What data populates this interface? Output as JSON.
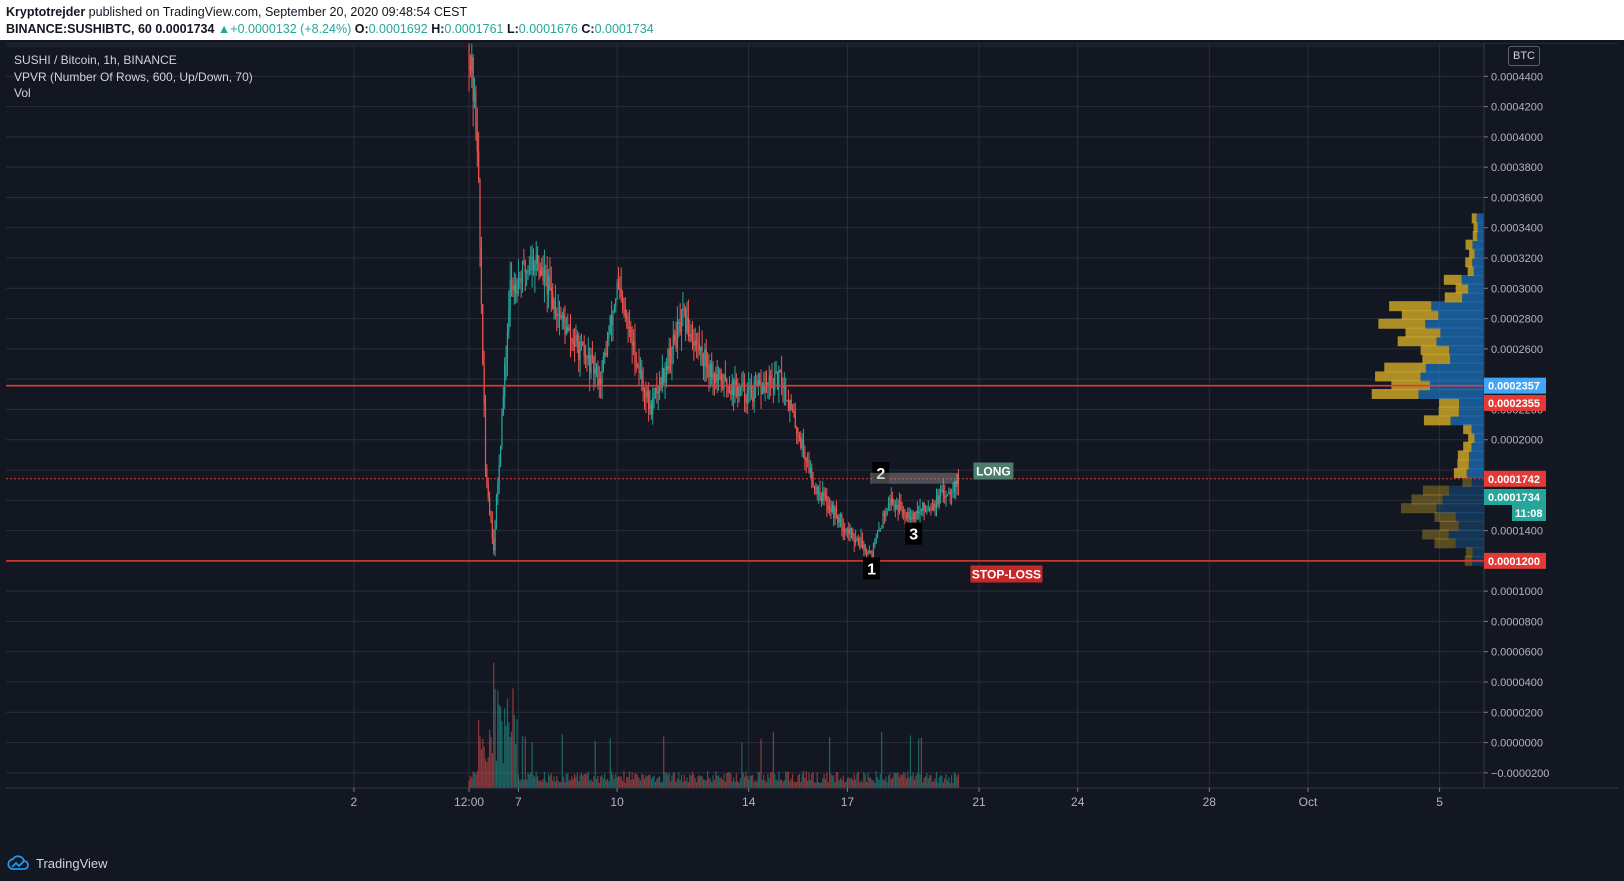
{
  "header": {
    "author": "Kryptotrejder",
    "published_text": "published on TradingView.com, September 20, 2020 09:48:54 CEST",
    "symbol": "BINANCE:SUSHIBTC, 60",
    "last": "0.0001734",
    "change": "+0.0000132 (+8.24%)",
    "open_label": "O:",
    "open": "0.0001692",
    "high_label": "H:",
    "high": "0.0001761",
    "low_label": "L:",
    "low": "0.0001676",
    "close_label": "C:",
    "close": "0.0001734"
  },
  "legend": {
    "line1": "SUSHI / Bitcoin, 1h, BINANCE",
    "line2": "VPVR (Number Of Rows, 600, Up/Down, 70)",
    "line3": "Vol"
  },
  "currency_badge": "BTC",
  "footer": {
    "brand": "TradingView"
  },
  "colors": {
    "background": "#131722",
    "grid": "#2a2e39",
    "up": "#26a69a",
    "down": "#ef5350",
    "level_line": "#e53935",
    "vpvr_up": "#1e6fb8",
    "vpvr_down": "#c9a227"
  },
  "chart_data": {
    "type": "candlestick",
    "title": "SUSHI / Bitcoin, 1h, BINANCE",
    "ylim": [
      -3e-05,
      0.000462
    ],
    "y_ticks": [
      "0.0004400",
      "0.0004200",
      "0.0004000",
      "0.0003800",
      "0.0003600",
      "0.0003400",
      "0.0003200",
      "0.0003000",
      "0.0002800",
      "0.0002600",
      "0.0002200",
      "0.0002000",
      "0.0001400",
      "0.0001000",
      "0.0000800",
      "0.0000600",
      "0.0000400",
      "0.0000200",
      "0.0000000",
      "−0.0000200"
    ],
    "x_tick_labels": [
      "2",
      "12:00",
      "7",
      "10",
      "14",
      "17",
      "21",
      "24",
      "28",
      "Oct",
      "5"
    ],
    "price_path_approx": [
      [
        "Sep 5 12:00",
        0.00046
      ],
      [
        "Sep 5 18:00",
        0.0004
      ],
      [
        "Sep 6 00:00",
        0.00018
      ],
      [
        "Sep 6 06:00",
        0.00013
      ],
      [
        "Sep 6 18:00",
        0.0003
      ],
      [
        "Sep 7 12:00",
        0.00032
      ],
      [
        "Sep 8 12:00",
        0.00027
      ],
      [
        "Sep 9 12:00",
        0.00024
      ],
      [
        "Sep 10 00:00",
        0.0003
      ],
      [
        "Sep 11 00:00",
        0.00022
      ],
      [
        "Sep 12 00:00",
        0.00028
      ],
      [
        "Sep 13 00:00",
        0.00024
      ],
      [
        "Sep 14 00:00",
        0.00023
      ],
      [
        "Sep 15 00:00",
        0.00024
      ],
      [
        "Sep 16 00:00",
        0.00017
      ],
      [
        "Sep 17 00:00",
        0.00014
      ],
      [
        "Sep 17 18:00",
        0.000125
      ],
      [
        "Sep 18 06:00",
        0.00016
      ],
      [
        "Sep 19 00:00",
        0.00015
      ],
      [
        "Sep 19 18:00",
        0.00016
      ],
      [
        "Sep 20 09:00",
        0.0001734
      ]
    ],
    "horizontal_levels": [
      {
        "price": 0.0002357,
        "label": "0.0002357",
        "badge_color": "#42a5f5"
      },
      {
        "price": 0.0002355,
        "label": "0.0002355",
        "badge_color": "#e53935"
      },
      {
        "price": 0.0001742,
        "label": "0.0001742",
        "badge_color": "#e53935"
      },
      {
        "price": 0.0001734,
        "label": "0.0001734",
        "badge_color": "#26a69a"
      },
      {
        "price": 0.00012,
        "label": "0.0001200",
        "badge_color": "#e53935"
      }
    ],
    "countdown": "11:08",
    "annotations": [
      {
        "text": "LONG",
        "price": 0.000179,
        "color": "#4caf8f"
      },
      {
        "text": "STOP-LOSS",
        "price": 0.000111,
        "color": "#e53935"
      },
      {
        "text": "1",
        "price": 0.000115
      },
      {
        "text": "2",
        "price": 0.000178
      },
      {
        "text": "3",
        "price": 0.000138
      }
    ],
    "vpvr_profile": [
      {
        "price": 0.00034,
        "up": 0.03,
        "down": 0.02
      },
      {
        "price": 0.00032,
        "up": 0.05,
        "down": 0.03
      },
      {
        "price": 0.0003,
        "up": 0.1,
        "down": 0.08
      },
      {
        "price": 0.00028,
        "up": 0.25,
        "down": 0.2
      },
      {
        "price": 0.00026,
        "up": 0.22,
        "down": 0.18
      },
      {
        "price": 0.00024,
        "up": 0.28,
        "down": 0.2
      },
      {
        "price": 0.00022,
        "up": 0.15,
        "down": 0.12
      },
      {
        "price": 0.0002,
        "up": 0.06,
        "down": 0.04
      },
      {
        "price": 0.00018,
        "up": 0.08,
        "down": 0.06
      },
      {
        "price": 0.00016,
        "up": 0.2,
        "down": 0.15
      },
      {
        "price": 0.00014,
        "up": 0.16,
        "down": 0.12
      },
      {
        "price": 0.00012,
        "up": 0.05,
        "down": 0.03
      }
    ]
  }
}
